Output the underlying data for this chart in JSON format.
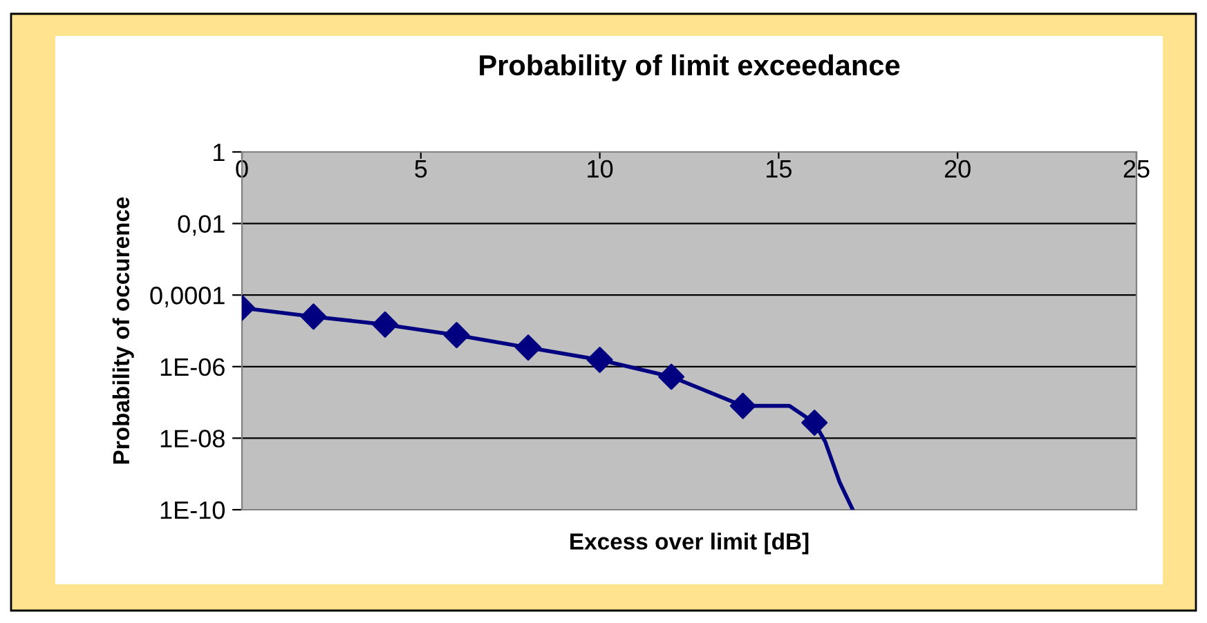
{
  "chart_data": {
    "type": "line",
    "title": "Probability of limit exceedance",
    "xlabel": "Excess over limit [dB]",
    "ylabel": "Probability of occurence",
    "log": "y",
    "xlim": [
      0,
      25
    ],
    "xticks": [
      0,
      5,
      10,
      15,
      20,
      25
    ],
    "ylim": [
      1e-10,
      1
    ],
    "yticks": [
      {
        "value": 1,
        "label": "1"
      },
      {
        "value": 0.01,
        "label": "0,01"
      },
      {
        "value": 0.0001,
        "label": "0,0001"
      },
      {
        "value": 1e-06,
        "label": "1E-06"
      },
      {
        "value": 1e-08,
        "label": "1E-08"
      },
      {
        "value": 1e-10,
        "label": "1E-10"
      }
    ],
    "grid": "y",
    "legend": false,
    "series": [
      {
        "marker": "none",
        "color": "#000080",
        "x": [
          0,
          2,
          4,
          6,
          8,
          10,
          12,
          14,
          15.3,
          16,
          16.3,
          16.7,
          17.07
        ],
        "values": [
          4.4e-05,
          2.5e-05,
          1.5e-05,
          7.6e-06,
          3.4e-06,
          1.55e-06,
          5.2e-07,
          8e-08,
          8e-08,
          2.7e-08,
          8e-09,
          6e-10,
          1e-10
        ]
      },
      {
        "type": "scatter",
        "marker": "diamond",
        "color": "#000080",
        "x": [
          0,
          2,
          4,
          6,
          8,
          10,
          12,
          14,
          16
        ],
        "values": [
          4.4e-05,
          2.5e-05,
          1.5e-05,
          7.6e-06,
          3.4e-06,
          1.55e-06,
          5.2e-07,
          8e-08,
          2.7e-08
        ]
      }
    ]
  }
}
